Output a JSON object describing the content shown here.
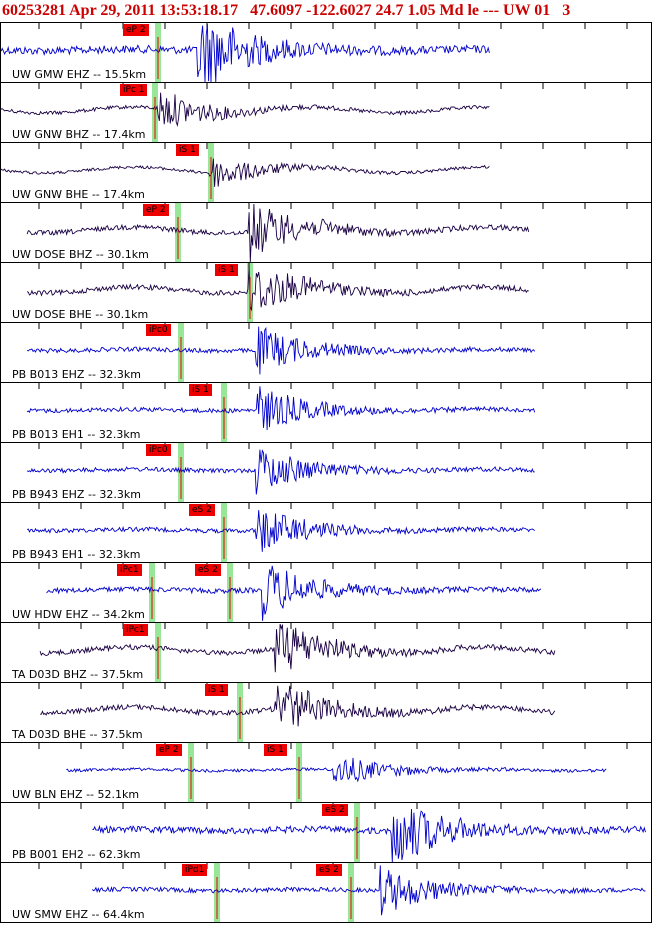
{
  "header": {
    "event_line": "60253281 Apr 29, 2011 13:53:18.17   47.6097 -122.6027 24.7 1.05 Md le --- UW 01   3"
  },
  "colors": {
    "trace_blue": "#0000cc",
    "trace_dark": "#1a0044",
    "pick_red": "#ee0000",
    "window_green": "#98e698",
    "header_red": "#cc0000",
    "tick_black": "#000000"
  },
  "traces": [
    {
      "label": "UW GMW EHZ -- 15.5km",
      "color": "blue",
      "amp": 0.55,
      "picks": [
        {
          "text": "eP 2",
          "t": 0.24
        }
      ],
      "arrival": 0.3,
      "start": 0.0,
      "end": 0.75
    },
    {
      "label": "UW GNW BHZ -- 17.4km",
      "color": "dark",
      "amp": 0.25,
      "picks": [
        {
          "text": "iPc 1",
          "t": 0.235
        }
      ],
      "arrival": 0.24,
      "start": 0.0,
      "end": 0.75
    },
    {
      "label": "UW GNW BHE -- 17.4km",
      "color": "dark",
      "amp": 0.2,
      "picks": [
        {
          "text": "iS 1",
          "t": 0.32
        }
      ],
      "arrival": 0.32,
      "start": 0.0,
      "end": 0.75
    },
    {
      "label": "UW DOSE BHZ -- 30.1km",
      "color": "dark",
      "amp": 0.35,
      "picks": [
        {
          "text": "eP 2",
          "t": 0.27
        }
      ],
      "arrival": 0.38,
      "start": 0.04,
      "end": 0.81
    },
    {
      "label": "UW DOSE BHE -- 30.1km",
      "color": "dark",
      "amp": 0.35,
      "picks": [
        {
          "text": "iS 1",
          "t": 0.38
        }
      ],
      "arrival": 0.38,
      "start": 0.04,
      "end": 0.81
    },
    {
      "label": "PB B013 EHZ -- 32.3km",
      "color": "blue",
      "amp": 0.3,
      "picks": [
        {
          "text": "iPc0",
          "t": 0.275
        }
      ],
      "arrival": 0.39,
      "start": 0.04,
      "end": 0.82
    },
    {
      "label": "PB B013 EH1 -- 32.3km",
      "color": "blue",
      "amp": 0.3,
      "picks": [
        {
          "text": "iS 1",
          "t": 0.34
        }
      ],
      "arrival": 0.39,
      "start": 0.04,
      "end": 0.82
    },
    {
      "label": "PB B943 EHZ -- 32.3km",
      "color": "blue",
      "amp": 0.3,
      "picks": [
        {
          "text": "iPc0",
          "t": 0.275
        }
      ],
      "arrival": 0.39,
      "start": 0.04,
      "end": 0.82
    },
    {
      "label": "PB B943 EH1 -- 32.3km",
      "color": "blue",
      "amp": 0.3,
      "picks": [
        {
          "text": "eS 2",
          "t": 0.34
        }
      ],
      "arrival": 0.39,
      "start": 0.04,
      "end": 0.82
    },
    {
      "label": "UW HDW EHZ -- 34.2km",
      "color": "blue",
      "amp": 0.35,
      "picks": [
        {
          "text": "iPc1",
          "t": 0.23
        },
        {
          "text": "eS 2",
          "t": 0.35
        }
      ],
      "arrival": 0.4,
      "start": 0.07,
      "end": 0.83
    },
    {
      "label": "TA D03D BHZ -- 37.5km",
      "color": "dark",
      "amp": 0.35,
      "picks": [
        {
          "text": "iPc1",
          "t": 0.24
        }
      ],
      "arrival": 0.42,
      "start": 0.06,
      "end": 0.85
    },
    {
      "label": "TA D03D BHE -- 37.5km",
      "color": "dark",
      "amp": 0.35,
      "picks": [
        {
          "text": "iS 1",
          "t": 0.365
        }
      ],
      "arrival": 0.42,
      "start": 0.06,
      "end": 0.85
    },
    {
      "label": "UW BLN EHZ -- 52.1km",
      "color": "blue",
      "amp": 0.2,
      "picks": [
        {
          "text": "eP 2",
          "t": 0.29
        },
        {
          "text": "iS 1",
          "t": 0.455
        }
      ],
      "arrival": 0.51,
      "start": 0.1,
      "end": 0.93
    },
    {
      "label": "PB B001 EH2 -- 62.3km",
      "color": "blue",
      "amp": 0.45,
      "picks": [
        {
          "text": "eS 2",
          "t": 0.545
        }
      ],
      "arrival": 0.6,
      "start": 0.14,
      "end": 0.99
    },
    {
      "label": "UW SMW EHZ -- 64.4km",
      "color": "blue",
      "amp": 0.3,
      "picks": [
        {
          "text": "iPd1",
          "t": 0.33
        },
        {
          "text": "eS 2",
          "t": 0.535
        }
      ],
      "arrival": 0.58,
      "start": 0.14,
      "end": 0.99
    }
  ]
}
